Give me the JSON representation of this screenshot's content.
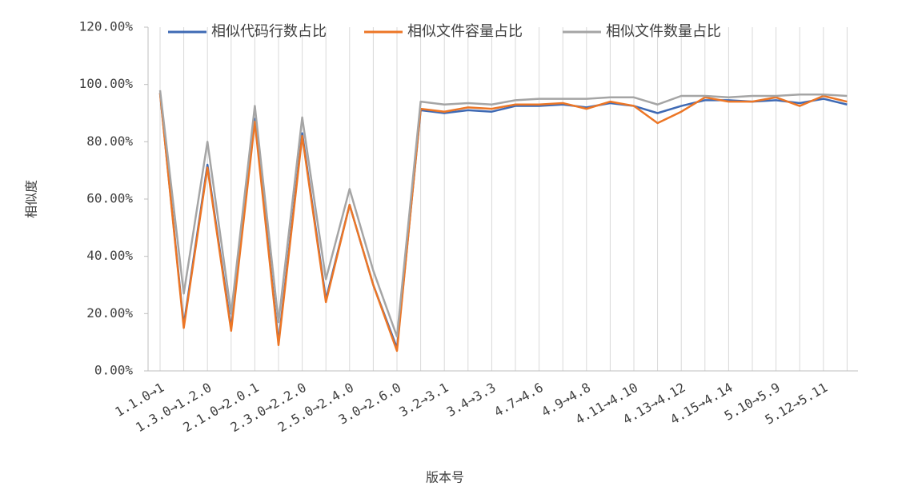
{
  "chart_data": {
    "type": "line",
    "legend_position": "top",
    "y_label": "相似度",
    "x_label": "版本号",
    "categories": [
      "1.1.0→1",
      null,
      "1.3.0→1.2.0",
      null,
      "2.1.0→2.0.1",
      null,
      "2.3.0→2.2.0",
      null,
      "2.5.0→2.4.0",
      null,
      "3.0→2.6.0",
      null,
      "3.2→3.1",
      null,
      "3.4→3.3",
      null,
      "4.7→4.6",
      null,
      "4.9→4.8",
      null,
      "4.11→4.10",
      null,
      "4.13→4.12",
      null,
      "4.15→4.14",
      null,
      "5.10→5.9",
      null,
      "5.12→5.11",
      null
    ],
    "series": [
      {
        "name": "相似代码行数占比",
        "color": "#3f6ab4",
        "values": [
          97,
          16,
          72,
          15,
          88,
          10,
          83,
          25,
          58,
          30,
          8,
          91,
          90,
          91,
          90.5,
          92.5,
          92.5,
          93,
          92,
          93.5,
          92.5,
          90,
          92.5,
          94.5,
          94.5,
          94,
          94.5,
          93.5,
          95,
          93
        ]
      },
      {
        "name": "相似文件容量占比",
        "color": "#ec7626",
        "values": [
          97,
          15,
          71,
          14,
          87,
          9,
          82,
          24,
          58,
          30,
          7,
          91.5,
          90.5,
          92,
          91.5,
          93,
          93,
          93.5,
          91.5,
          94,
          92.5,
          86.5,
          90.5,
          95.5,
          94,
          94,
          95.5,
          92.5,
          96,
          94
        ]
      },
      {
        "name": "相似文件数量占比",
        "color": "#a5a5a5",
        "values": [
          98,
          27,
          80,
          20,
          92.5,
          17,
          88.5,
          32,
          63.5,
          35,
          12,
          94,
          93,
          93.5,
          93,
          94.5,
          95,
          95,
          95,
          95.5,
          95.5,
          93,
          96,
          96,
          95.5,
          96,
          96,
          96.5,
          96.5,
          96
        ]
      }
    ],
    "ylim": [
      0,
      120
    ],
    "yticks": [
      {
        "value": 0,
        "label": "0.00%"
      },
      {
        "value": 20,
        "label": "20.00%"
      },
      {
        "value": 40,
        "label": "40.00%"
      },
      {
        "value": 60,
        "label": "60.00%"
      },
      {
        "value": 80,
        "label": "80.00%"
      },
      {
        "value": 100,
        "label": "100.00%"
      },
      {
        "value": 120,
        "label": "120.00%"
      }
    ],
    "grid": true
  }
}
